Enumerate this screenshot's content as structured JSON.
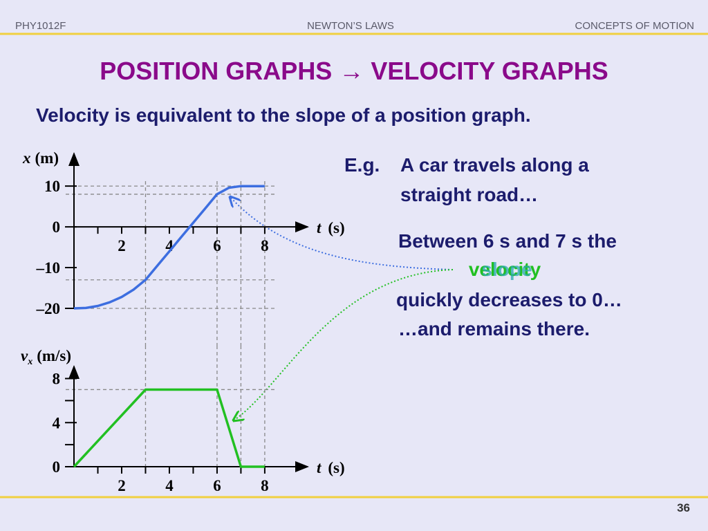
{
  "header": {
    "course": "PHY1012F",
    "topic": "NEWTON’S LAWS",
    "section": "CONCEPTS OF MOTION"
  },
  "title": "POSITION GRAPHS → VELOCITY GRAPHS",
  "subtitle": "Velocity is equivalent to the slope of a position graph.",
  "example": {
    "label": "E.g.",
    "lines": [
      "A car travels along a",
      "straight road…"
    ]
  },
  "note": {
    "lines": [
      "Between 6 s and 7 s the",
      "quickly decreases to 0…",
      "…and remains there."
    ],
    "overlap": [
      "velocity",
      "slope"
    ]
  },
  "page_number": "36",
  "chart_data": [
    {
      "type": "line",
      "color": "#3d6ee0",
      "ylabel": {
        "symbol": "x",
        "unit": "(m)"
      },
      "xlabel": {
        "symbol": "t",
        "unit": "(s)"
      },
      "x": [
        0,
        0.5,
        1,
        1.5,
        2,
        2.5,
        3,
        3.5,
        4,
        4.5,
        5,
        5.5,
        6,
        6.5,
        7,
        7.5,
        8
      ],
      "values": [
        -20,
        -19.9,
        -19.4,
        -18.5,
        -17.2,
        -15.4,
        -13,
        -9.5,
        -6,
        -2.5,
        1,
        4.5,
        8,
        9.6,
        10,
        10,
        10
      ],
      "xlim": [
        0,
        9.8
      ],
      "ylim": [
        -20,
        18
      ],
      "xticks": [
        2,
        4,
        6,
        8
      ],
      "xminorticks": [
        1,
        3,
        5,
        7
      ],
      "yticks": [
        10,
        0,
        {
          "value": -10,
          "label": "–10"
        },
        {
          "value": -20,
          "label": "–20"
        }
      ],
      "hguides": [
        10,
        8,
        -13,
        -20
      ],
      "vguides": [
        3,
        6,
        7,
        8
      ]
    },
    {
      "type": "line",
      "color": "#22c022",
      "ylabel": {
        "symbol": "v",
        "subscript": "x",
        "unit": "(m/s)"
      },
      "xlabel": {
        "symbol": "t",
        "unit": "(s)"
      },
      "x": [
        0,
        3,
        6,
        7,
        8
      ],
      "values": [
        0,
        7,
        7,
        0,
        0
      ],
      "xlim": [
        0,
        9.8
      ],
      "ylim": [
        0,
        9.1
      ],
      "xticks": [
        2,
        4,
        6,
        8
      ],
      "xminorticks": [
        1,
        3,
        5,
        7
      ],
      "yticks": [
        8,
        4,
        0
      ],
      "yminorticks": [
        2,
        6
      ],
      "hguides": [
        7
      ],
      "vguides": [
        3,
        6,
        7,
        8
      ]
    }
  ]
}
